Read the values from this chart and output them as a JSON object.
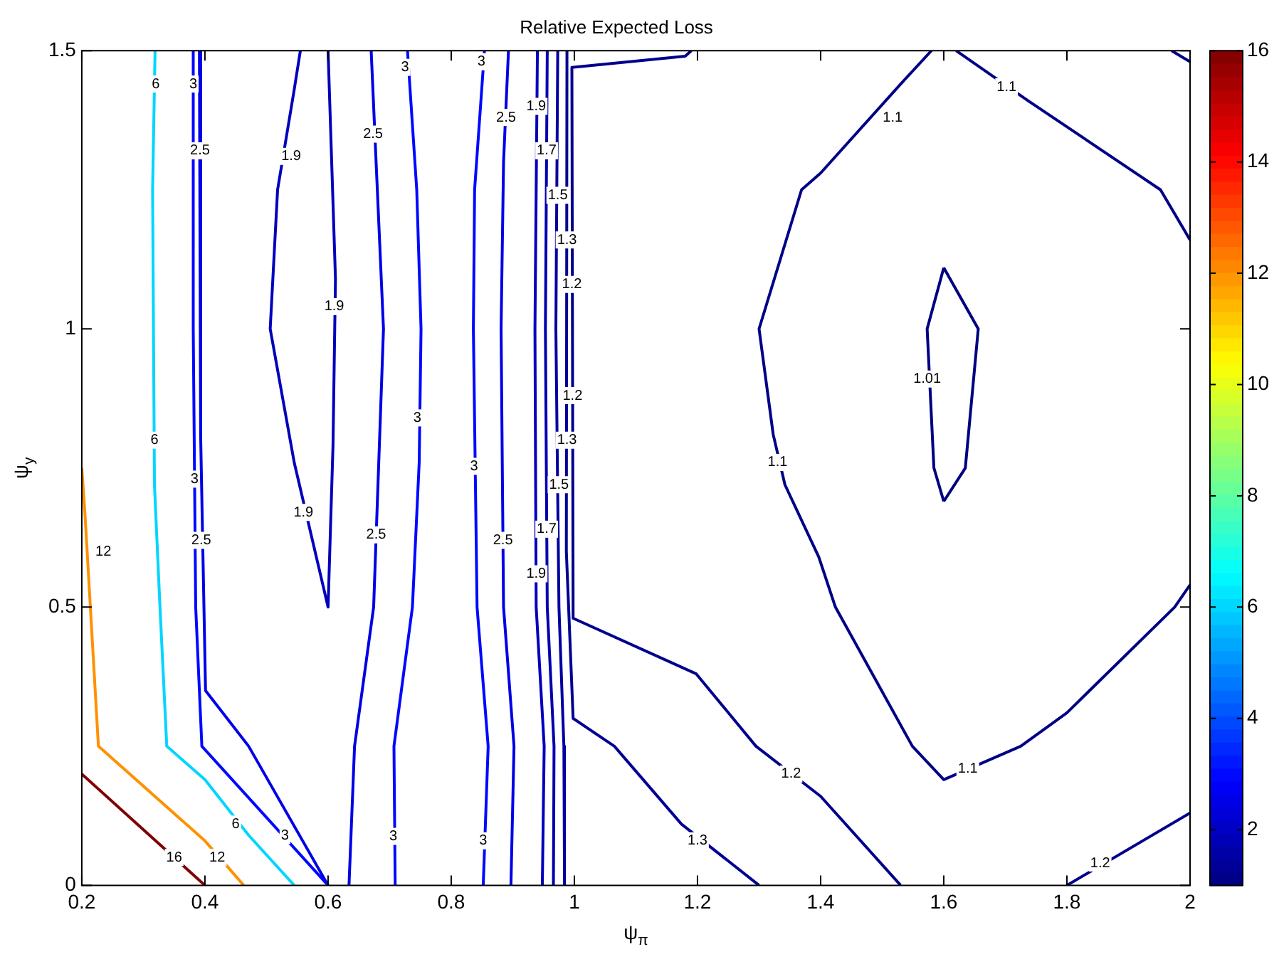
{
  "chart_data": {
    "type": "line",
    "title": "Relative Expected Loss",
    "xlabel": "ψ$_{π}$",
    "ylabel": "ψ$_{y}$",
    "xlim": [
      0.2,
      2
    ],
    "xticks": [
      0.2,
      0.4,
      0.6,
      0.8,
      1,
      1.2,
      1.4,
      1.6,
      1.8,
      2
    ],
    "ylim": [
      0,
      1.5
    ],
    "yticks": [
      0,
      0.5,
      1,
      1.5
    ],
    "clim": [
      1,
      16
    ],
    "cticks": [
      2,
      4,
      6,
      8,
      10,
      12,
      14,
      16
    ],
    "series": [
      {
        "color": "#800000",
        "x": [
          0.2,
          0.4
        ],
        "values": [
          0.2,
          0
        ]
      },
      {
        "color": "#ff9100",
        "x": [
          0.2,
          0.205,
          0.227,
          0.4,
          0.463
        ],
        "values": [
          0.75,
          0.67,
          0.25,
          0.08,
          0
        ]
      },
      {
        "color": "#00d5ff",
        "x": [
          0.319,
          0.315,
          0.318,
          0.327,
          0.338,
          0.4,
          0.471,
          0.545
        ],
        "values": [
          1.5,
          1.25,
          0.72,
          0.5,
          0.25,
          0.19,
          0.09,
          0
        ]
      },
      {
        "color": "#0008ff",
        "x": [
          0.381,
          0.381,
          0.385,
          0.395,
          0.6,
          null,
          0.729,
          0.744,
          0.751,
          0.748,
          0.737,
          0.707,
          0.709,
          null,
          0.854,
          0.838,
          0.836,
          0.842,
          0.86,
          0.852
        ],
        "values": [
          1.5,
          1,
          0.5,
          0.25,
          0,
          null,
          1.5,
          1.25,
          1,
          0.76,
          0.5,
          0.25,
          0,
          null,
          1.5,
          1.25,
          1,
          0.5,
          0.25,
          0
        ]
      },
      {
        "color": "#0000e6",
        "x": [
          0.391,
          0.393,
          0.401,
          0.471,
          0.6,
          null,
          0.67,
          0.674,
          0.69,
          0.674,
          0.643,
          0.634,
          null,
          0.893,
          0.885,
          0.881,
          0.885,
          0.902,
          0.897
        ],
        "values": [
          1.5,
          0.81,
          0.35,
          0.25,
          0,
          null,
          1.5,
          1.4,
          1,
          0.5,
          0.25,
          0,
          null,
          1.5,
          1.3,
          1,
          0.5,
          0.25,
          0
        ]
      },
      {
        "color": "#0000bd",
        "x": [
          0.555,
          0.545,
          0.518,
          0.506,
          0.545,
          0.6,
          0.608,
          0.612,
          0.6,
          null,
          0.94,
          0.936,
          0.938,
          0.951,
          0.948
        ],
        "values": [
          1.5,
          1.43,
          1.25,
          1,
          0.76,
          0.5,
          0.79,
          1.09,
          1.5,
          null,
          1.5,
          1,
          0.5,
          0.25,
          0
        ]
      },
      {
        "color": "#0000af",
        "x": [
          0.956,
          0.953,
          0.956,
          0.967,
          0.966
        ],
        "values": [
          1.5,
          1,
          0.5,
          0.25,
          0
        ]
      },
      {
        "color": "#0000a1",
        "x": [
          0.973,
          0.97,
          0.975,
          0.983,
          0.984
        ],
        "values": [
          1.5,
          1,
          0.5,
          0.25,
          0
        ]
      },
      {
        "color": "#000094",
        "x": [
          0.988,
          0.987,
          0.998,
          1.065,
          1.174,
          1.3
        ],
        "values": [
          1.5,
          0.6,
          0.3,
          0.25,
          0.11,
          0
        ]
      },
      {
        "color": "#00008d",
        "x": [
          1.19,
          1.18,
          0.996,
          0.998,
          1.198,
          1.295,
          1.4,
          1.53,
          null,
          1.8,
          2
        ],
        "values": [
          1.5,
          1.49,
          1.47,
          0.48,
          0.38,
          0.25,
          0.16,
          0,
          null,
          0,
          0.13
        ]
      },
      {
        "color": "#000086",
        "x": [
          1.58,
          1.53,
          1.4,
          1.369,
          1.3,
          1.323,
          1.342,
          1.397,
          1.424,
          1.549,
          1.6,
          1.725,
          1.8,
          1.975,
          2,
          null,
          1.62,
          1.737,
          1.952,
          2,
          null,
          1.97,
          2
        ],
        "values": [
          1.5,
          1.44,
          1.28,
          1.25,
          1,
          0.81,
          0.72,
          0.59,
          0.5,
          0.25,
          0.19,
          0.25,
          0.31,
          0.5,
          0.54,
          null,
          1.5,
          1.41,
          1.25,
          1.16,
          null,
          1.5,
          1.48
        ]
      },
      {
        "color": "#000080",
        "x": [
          1.6,
          1.656,
          1.635,
          1.6,
          null,
          1.6,
          1.584,
          1.573,
          1.6
        ],
        "values": [
          1.11,
          1,
          0.75,
          0.69,
          null,
          0.69,
          0.75,
          1,
          1.11
        ]
      }
    ],
    "annotations": [
      {
        "text": "16",
        "x": 0.35,
        "y": 0.05
      },
      {
        "text": "12",
        "x": 0.42,
        "y": 0.05
      },
      {
        "text": "12",
        "x": 0.235,
        "y": 0.6
      },
      {
        "text": "6",
        "x": 0.32,
        "y": 1.44
      },
      {
        "text": "6",
        "x": 0.318,
        "y": 0.8
      },
      {
        "text": "6",
        "x": 0.45,
        "y": 0.11
      },
      {
        "text": "3",
        "x": 0.381,
        "y": 1.44
      },
      {
        "text": "3",
        "x": 0.383,
        "y": 0.73
      },
      {
        "text": "3",
        "x": 0.53,
        "y": 0.09
      },
      {
        "text": "2.5",
        "x": 0.392,
        "y": 1.32
      },
      {
        "text": "2.5",
        "x": 0.394,
        "y": 0.62
      },
      {
        "text": "1.9",
        "x": 0.54,
        "y": 1.31
      },
      {
        "text": "1.9",
        "x": 0.61,
        "y": 1.04
      },
      {
        "text": "1.9",
        "x": 0.56,
        "y": 0.67
      },
      {
        "text": "2.5",
        "x": 0.673,
        "y": 1.35
      },
      {
        "text": "2.5",
        "x": 0.678,
        "y": 0.63
      },
      {
        "text": "3",
        "x": 0.725,
        "y": 1.47
      },
      {
        "text": "3",
        "x": 0.745,
        "y": 0.84
      },
      {
        "text": "3",
        "x": 0.706,
        "y": 0.088
      },
      {
        "text": "3",
        "x": 0.849,
        "y": 1.48
      },
      {
        "text": "3",
        "x": 0.837,
        "y": 0.753
      },
      {
        "text": "3",
        "x": 0.852,
        "y": 0.08
      },
      {
        "text": "2.5",
        "x": 0.889,
        "y": 1.38
      },
      {
        "text": "2.5",
        "x": 0.884,
        "y": 0.62
      },
      {
        "text": "1.9",
        "x": 0.938,
        "y": 1.4
      },
      {
        "text": "1.7",
        "x": 0.955,
        "y": 1.32
      },
      {
        "text": "1.5",
        "x": 0.973,
        "y": 1.24
      },
      {
        "text": "1.9",
        "x": 0.938,
        "y": 0.56
      },
      {
        "text": "1.7",
        "x": 0.955,
        "y": 0.64
      },
      {
        "text": "1.5",
        "x": 0.975,
        "y": 0.72
      },
      {
        "text": "1.3",
        "x": 0.988,
        "y": 1.16
      },
      {
        "text": "1.2",
        "x": 0.996,
        "y": 1.08
      },
      {
        "text": "1.3",
        "x": 0.988,
        "y": 0.8
      },
      {
        "text": "1.2",
        "x": 0.997,
        "y": 0.88
      },
      {
        "text": "1.3",
        "x": 1.2,
        "y": 0.08
      },
      {
        "text": "1.2",
        "x": 1.352,
        "y": 0.2
      },
      {
        "text": "1.1",
        "x": 1.517,
        "y": 1.38
      },
      {
        "text": "1.1",
        "x": 1.702,
        "y": 1.435
      },
      {
        "text": "1.1",
        "x": 1.33,
        "y": 0.76
      },
      {
        "text": "1.1",
        "x": 1.639,
        "y": 0.21
      },
      {
        "text": "1.01",
        "x": 1.573,
        "y": 0.91
      },
      {
        "text": "1.2",
        "x": 1.854,
        "y": 0.04
      }
    ]
  }
}
